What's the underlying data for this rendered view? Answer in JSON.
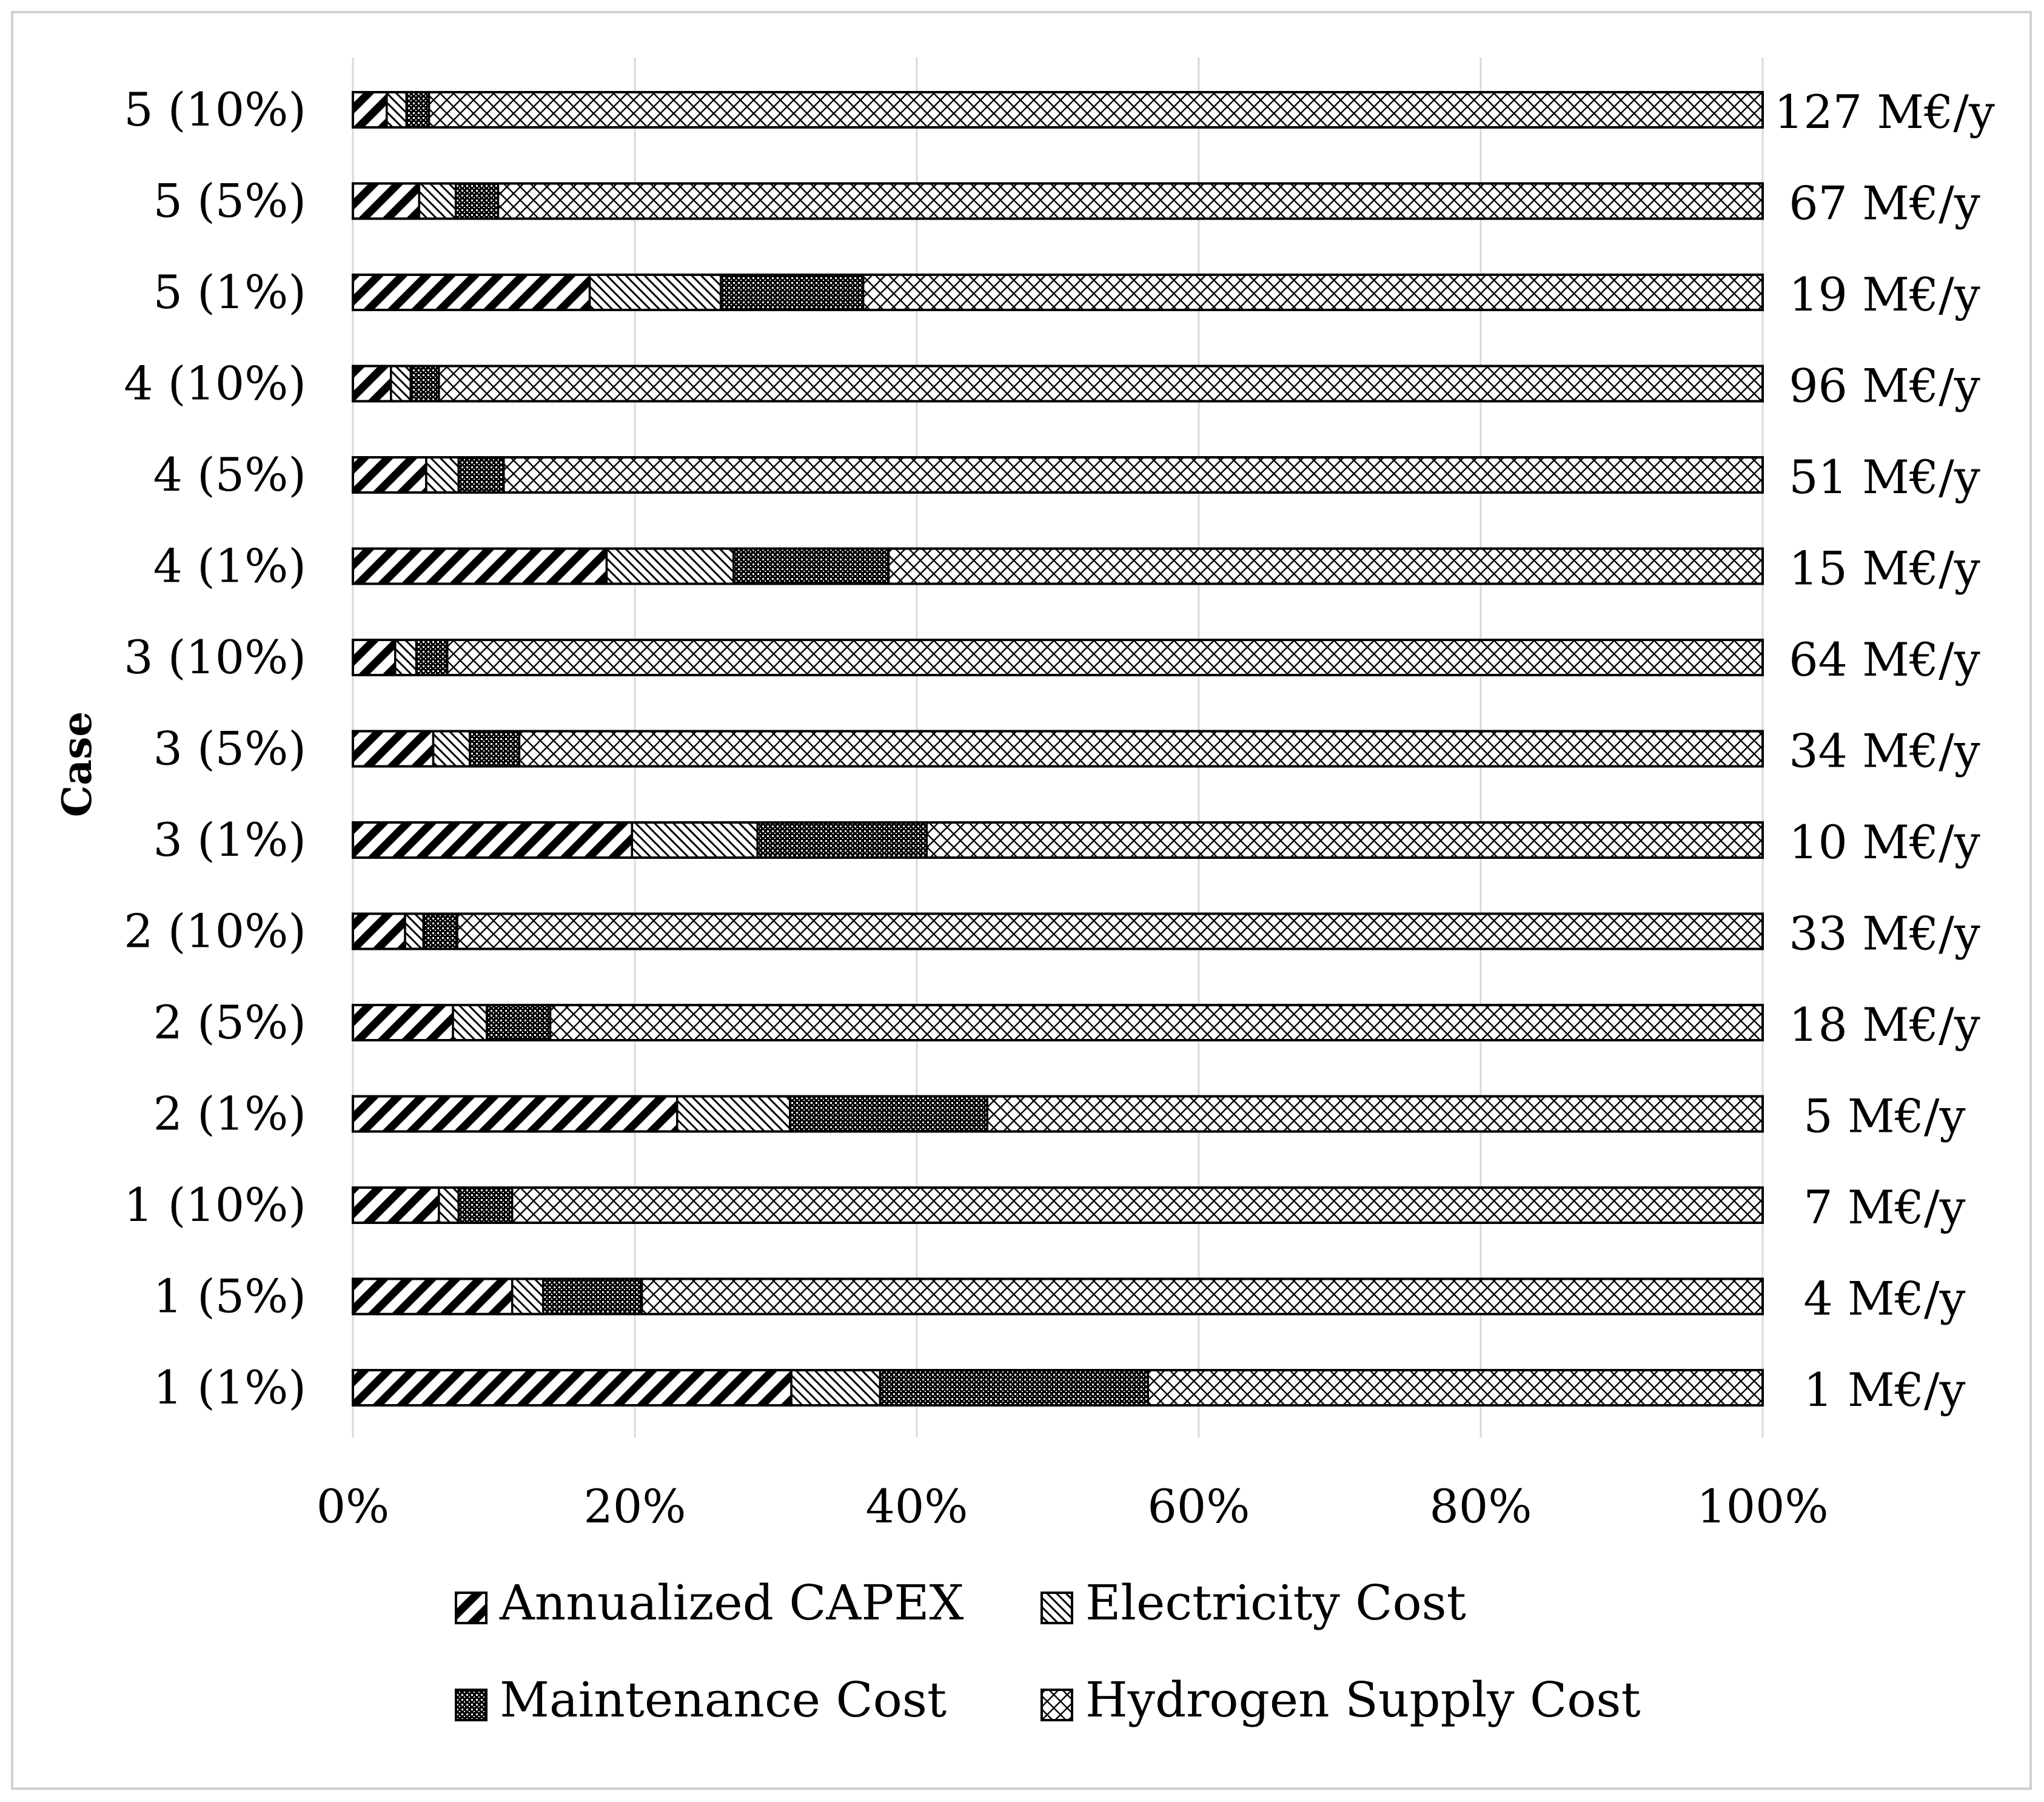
{
  "chart_data": {
    "type": "bar",
    "orientation": "horizontal",
    "stacked": "percent",
    "title": "",
    "xlabel": "",
    "ylabel": "Case",
    "xlim": [
      0,
      100
    ],
    "x_ticks": [
      "0%",
      "20%",
      "40%",
      "60%",
      "80%",
      "100%"
    ],
    "grid": true,
    "legend_position": "bottom",
    "categories": [
      "5 (10%)",
      "5 (5%)",
      "5 (1%)",
      "4 (10%)",
      "4 (5%)",
      "4 (1%)",
      "3 (10%)",
      "3 (5%)",
      "3 (1%)",
      "2 (10%)",
      "2 (5%)",
      "2 (1%)",
      "1 (10%)",
      "1 (5%)",
      "1 (1%)"
    ],
    "totals": [
      "127 M€/y",
      "67 M€/y",
      "19 M€/y",
      "96 M€/y",
      "51 M€/y",
      "15 M€/y",
      "64 M€/y",
      "34 M€/y",
      "10 M€/y",
      "33 M€/y",
      "18 M€/y",
      "5 M€/y",
      "7 M€/y",
      "4 M€/y",
      "1 M€/y"
    ],
    "series": [
      {
        "name": "Annualized CAPEX",
        "pattern": "diagonal-thick",
        "values": [
          2.4,
          4.7,
          16.8,
          2.7,
          5.2,
          18.0,
          3.0,
          5.7,
          19.8,
          3.7,
          7.1,
          23.0,
          6.1,
          11.3,
          31.1
        ]
      },
      {
        "name": "Electricity Cost",
        "pattern": "diagonal-thin",
        "values": [
          1.4,
          2.6,
          9.3,
          1.4,
          2.3,
          9.0,
          1.5,
          2.6,
          8.9,
          1.3,
          2.4,
          8.0,
          1.4,
          2.2,
          6.3
        ]
      },
      {
        "name": "Maintenance Cost",
        "pattern": "dense-dots",
        "values": [
          1.6,
          3.0,
          10.1,
          2.0,
          3.2,
          11.0,
          2.2,
          3.5,
          12.0,
          2.4,
          4.5,
          14.0,
          3.8,
          7.0,
          19.0
        ]
      },
      {
        "name": "Hydrogen Supply Cost",
        "pattern": "crosshatch",
        "values": [
          94.6,
          89.7,
          63.8,
          93.9,
          89.3,
          62.0,
          93.3,
          88.2,
          59.3,
          92.6,
          86.0,
          55.0,
          88.7,
          79.5,
          43.6
        ]
      }
    ]
  },
  "colors": {
    "ink": "#000000",
    "gridline": "#d9d9d9",
    "frame": "#d0d0d0",
    "background": "#ffffff"
  }
}
